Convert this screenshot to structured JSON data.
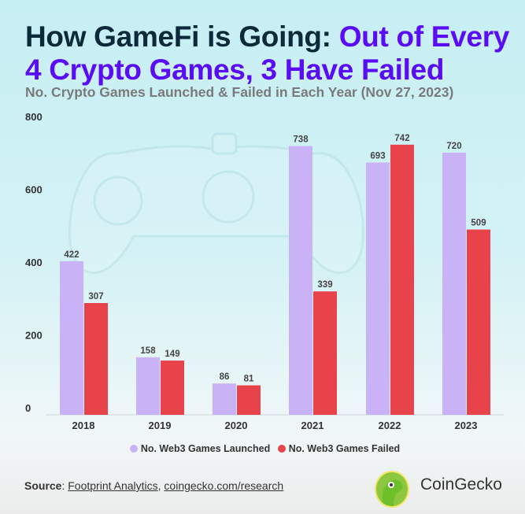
{
  "header": {
    "title_part1": "How GameFi is Going: ",
    "title_part2": "Out of Every 4 Crypto Games, 3 Have Failed",
    "subtitle": "No. Crypto Games Launched & Failed in Each Year (Nov 27, 2023)"
  },
  "chart_data": {
    "type": "bar",
    "title": "How GameFi is Going: Out of Every 4 Crypto Games, 3 Have Failed",
    "subtitle": "No. Crypto Games Launched & Failed in Each Year (Nov 27, 2023)",
    "xlabel": "",
    "ylabel": "",
    "ylim": [
      0,
      800
    ],
    "yticks": [
      0,
      200,
      400,
      600,
      800
    ],
    "categories": [
      "2018",
      "2019",
      "2020",
      "2021",
      "2022",
      "2023"
    ],
    "series": [
      {
        "name": "No. Web3 Games Launched",
        "color": "#c9b2f5",
        "values": [
          422,
          158,
          86,
          738,
          693,
          720
        ]
      },
      {
        "name": "No. Web3 Games Failed",
        "color": "#e8434b",
        "values": [
          307,
          149,
          81,
          339,
          742,
          509
        ]
      }
    ],
    "legend_position": "bottom",
    "grid": false
  },
  "footer": {
    "source_label": "Source",
    "source_link1": "Footprint Analytics",
    "source_sep": ", ",
    "source_link2": "coingecko.com/research",
    "brand": "CoinGecko"
  }
}
